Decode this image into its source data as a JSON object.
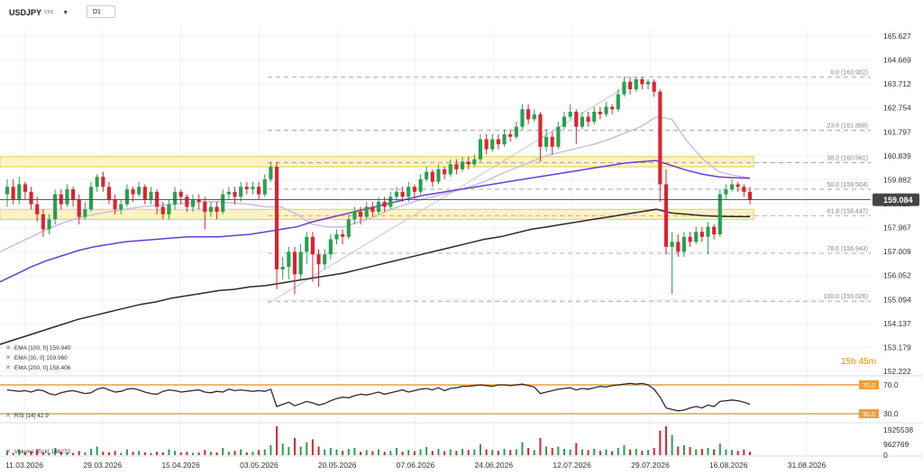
{
  "header": {
    "symbol": "USDJPY",
    "instrument_type": "CFD",
    "timeframe": "D1"
  },
  "countdown": "15h 45m",
  "colors": {
    "up": "#27a050",
    "down": "#e0212e",
    "ema100": "#6a3dd6",
    "ema30": "#c9bfe3",
    "ema200": "#2b2b2b",
    "rsi": "#2b2b2b",
    "level": "#f0a030",
    "zone_fill": "#fdf2bd",
    "zone_border": "#e8c840",
    "fib": "#999999"
  },
  "chart_data": {
    "type": "candlestick",
    "main": {
      "ylim": [
        152.222,
        165.627
      ],
      "y_ticks": [
        "165.627",
        "164.669",
        "163.712",
        "162.754",
        "161.797",
        "160.839",
        "159.882",
        "158.925",
        "157.967",
        "157.009",
        "156.052",
        "155.094",
        "154.137",
        "153.179",
        "152.222"
      ],
      "last_price": "159.084",
      "x_ticks": [
        "11.03.2026",
        "29.03.2026",
        "15.04.2026",
        "03.05.2026",
        "20.05.2026",
        "07.06.2026",
        "24.06.2026",
        "12.07.2026",
        "29.07.2026",
        "16.08.2026",
        "31.08.2026"
      ],
      "fibonacci": [
        {
          "label": "0.0 (163.982)",
          "value": 163.982
        },
        {
          "label": "23.6 (161.868)",
          "value": 161.868
        },
        {
          "label": "38.2 (160.561)",
          "value": 160.561
        },
        {
          "label": "50.0 (159.504)",
          "value": 159.504
        },
        {
          "label": "61.8 (158.447)",
          "value": 158.447
        },
        {
          "label": "78.6 (156.943)",
          "value": 156.943
        },
        {
          "label": "100.0 (155.026)",
          "value": 155.026
        }
      ],
      "zones": [
        {
          "from": 160.4,
          "to": 160.8
        },
        {
          "from": 158.3,
          "to": 158.7
        }
      ],
      "indicators": [
        {
          "name": "EMA [100, 0]",
          "value": "159.940"
        },
        {
          "name": "EMA [30, 0]",
          "value": "159.960"
        },
        {
          "name": "EMA [200, 0]",
          "value": "158.406"
        }
      ],
      "candles": [
        [
          159.3,
          159.6,
          159.9,
          158.8
        ],
        [
          159.6,
          159.1,
          159.9,
          158.9
        ],
        [
          159.1,
          159.7,
          160.0,
          158.9
        ],
        [
          159.7,
          159.4,
          159.8,
          159.1
        ],
        [
          159.4,
          158.9,
          159.6,
          158.7
        ],
        [
          158.9,
          158.5,
          159.2,
          158.2
        ],
        [
          158.5,
          157.9,
          158.7,
          157.6
        ],
        [
          157.9,
          158.3,
          158.5,
          157.7
        ],
        [
          158.3,
          159.3,
          159.5,
          158.1
        ],
        [
          159.3,
          158.9,
          159.5,
          158.7
        ],
        [
          158.9,
          159.5,
          159.7,
          158.8
        ],
        [
          159.5,
          159.1,
          159.6,
          158.8
        ],
        [
          159.1,
          158.4,
          159.3,
          158.1
        ],
        [
          158.4,
          158.7,
          159.0,
          158.3
        ],
        [
          158.7,
          159.6,
          159.8,
          158.6
        ],
        [
          159.6,
          160.0,
          160.1,
          159.4
        ],
        [
          160.0,
          159.6,
          160.2,
          159.4
        ],
        [
          159.6,
          159.1,
          159.8,
          158.9
        ],
        [
          159.1,
          158.7,
          159.3,
          158.5
        ],
        [
          158.7,
          158.9,
          159.1,
          158.5
        ],
        [
          158.9,
          159.5,
          159.7,
          158.8
        ],
        [
          159.5,
          159.3,
          159.6,
          159.0
        ],
        [
          159.3,
          159.6,
          159.8,
          159.2
        ],
        [
          159.6,
          159.1,
          159.7,
          158.9
        ],
        [
          159.1,
          159.4,
          159.6,
          158.9
        ],
        [
          159.4,
          158.8,
          159.5,
          158.5
        ],
        [
          158.8,
          158.5,
          159.0,
          158.3
        ],
        [
          158.5,
          158.9,
          159.1,
          158.3
        ],
        [
          158.9,
          159.4,
          159.6,
          158.7
        ],
        [
          159.4,
          159.2,
          159.5,
          158.9
        ],
        [
          159.2,
          158.8,
          159.3,
          158.6
        ],
        [
          158.8,
          159.1,
          159.3,
          158.6
        ],
        [
          159.1,
          159.0,
          159.3,
          158.7
        ],
        [
          159.0,
          158.6,
          159.2,
          157.9
        ],
        [
          158.6,
          158.8,
          159.0,
          158.4
        ],
        [
          158.8,
          158.6,
          159.0,
          158.3
        ],
        [
          158.6,
          159.3,
          159.5,
          158.5
        ],
        [
          159.3,
          159.4,
          159.6,
          159.1
        ],
        [
          159.4,
          159.2,
          159.6,
          158.9
        ],
        [
          159.2,
          159.6,
          159.8,
          159.0
        ],
        [
          159.6,
          159.5,
          159.8,
          159.3
        ],
        [
          159.5,
          159.6,
          159.8,
          159.3
        ],
        [
          159.6,
          159.3,
          159.8,
          159.1
        ],
        [
          159.3,
          159.9,
          160.1,
          159.2
        ],
        [
          159.9,
          160.4,
          160.6,
          159.8
        ],
        [
          160.4,
          156.3,
          160.6,
          155.5
        ],
        [
          156.3,
          156.4,
          156.8,
          155.9
        ],
        [
          156.4,
          157.0,
          157.2,
          155.9
        ],
        [
          157.0,
          156.1,
          157.2,
          155.3
        ],
        [
          156.1,
          157.0,
          157.3,
          155.9
        ],
        [
          157.0,
          157.6,
          157.8,
          156.5
        ],
        [
          157.6,
          156.9,
          157.8,
          155.8
        ],
        [
          156.9,
          156.5,
          157.1,
          155.6
        ],
        [
          156.5,
          156.9,
          157.1,
          156.3
        ],
        [
          156.9,
          157.5,
          157.7,
          156.7
        ],
        [
          157.5,
          157.7,
          157.9,
          157.3
        ],
        [
          157.7,
          157.6,
          157.9,
          157.3
        ],
        [
          157.6,
          158.3,
          158.5,
          157.5
        ],
        [
          158.3,
          158.6,
          158.8,
          158.1
        ],
        [
          158.6,
          158.4,
          158.8,
          158.1
        ],
        [
          158.4,
          158.8,
          159.0,
          158.3
        ],
        [
          158.8,
          158.6,
          159.0,
          158.4
        ],
        [
          158.6,
          159.0,
          159.2,
          158.5
        ],
        [
          159.0,
          158.8,
          159.2,
          158.6
        ],
        [
          158.8,
          159.2,
          159.4,
          158.7
        ],
        [
          159.2,
          159.4,
          159.6,
          159.0
        ],
        [
          159.4,
          159.2,
          159.6,
          159.0
        ],
        [
          159.2,
          159.6,
          159.8,
          159.0
        ],
        [
          159.6,
          159.4,
          159.7,
          159.1
        ],
        [
          159.4,
          159.9,
          160.1,
          159.3
        ],
        [
          159.9,
          160.2,
          160.4,
          159.8
        ],
        [
          160.2,
          159.8,
          160.3,
          159.6
        ],
        [
          159.8,
          160.3,
          160.5,
          159.7
        ],
        [
          160.3,
          160.1,
          160.4,
          159.9
        ],
        [
          160.1,
          160.5,
          160.7,
          160.0
        ],
        [
          160.5,
          160.3,
          160.7,
          160.1
        ],
        [
          160.3,
          160.6,
          160.8,
          160.2
        ],
        [
          160.6,
          160.5,
          160.8,
          160.3
        ],
        [
          160.5,
          160.7,
          160.9,
          160.4
        ],
        [
          160.7,
          161.5,
          161.7,
          160.6
        ],
        [
          161.5,
          161.1,
          161.7,
          160.9
        ],
        [
          161.1,
          161.5,
          161.7,
          161.0
        ],
        [
          161.5,
          161.3,
          161.7,
          161.1
        ],
        [
          161.3,
          161.7,
          161.9,
          161.2
        ],
        [
          161.7,
          161.6,
          161.9,
          161.4
        ],
        [
          161.6,
          162.0,
          162.2,
          161.5
        ],
        [
          162.0,
          162.7,
          162.9,
          161.9
        ],
        [
          162.7,
          162.3,
          162.9,
          162.1
        ],
        [
          162.3,
          162.5,
          162.7,
          162.2
        ],
        [
          162.5,
          161.2,
          162.6,
          160.6
        ],
        [
          161.2,
          161.6,
          161.9,
          161.0
        ],
        [
          161.6,
          161.2,
          161.8,
          160.9
        ],
        [
          161.2,
          162.0,
          162.2,
          161.1
        ],
        [
          162.0,
          162.4,
          162.6,
          161.9
        ],
        [
          162.4,
          162.6,
          162.9,
          162.3
        ],
        [
          162.6,
          162.0,
          162.7,
          161.3
        ],
        [
          162.0,
          162.4,
          162.6,
          161.9
        ],
        [
          162.4,
          162.2,
          162.6,
          162.0
        ],
        [
          162.2,
          162.6,
          162.8,
          162.1
        ],
        [
          162.6,
          162.5,
          162.8,
          162.3
        ],
        [
          162.5,
          162.8,
          163.0,
          162.4
        ],
        [
          162.8,
          162.7,
          162.9,
          162.5
        ],
        [
          162.7,
          163.3,
          163.5,
          162.6
        ],
        [
          163.3,
          163.8,
          164.0,
          163.2
        ],
        [
          163.8,
          163.5,
          164.0,
          163.3
        ],
        [
          163.5,
          163.9,
          164.0,
          163.4
        ],
        [
          163.9,
          163.7,
          164.0,
          163.5
        ],
        [
          163.7,
          163.8,
          163.9,
          163.5
        ],
        [
          163.8,
          163.4,
          163.9,
          163.2
        ],
        [
          163.4,
          159.7,
          163.5,
          159.0
        ],
        [
          159.7,
          157.2,
          160.3,
          156.9
        ],
        [
          157.2,
          157.4,
          157.8,
          155.3
        ],
        [
          157.4,
          157.0,
          157.7,
          156.8
        ],
        [
          157.0,
          157.6,
          157.8,
          156.8
        ],
        [
          157.6,
          157.4,
          157.8,
          157.2
        ],
        [
          157.4,
          157.8,
          158.0,
          157.3
        ],
        [
          157.8,
          157.6,
          158.0,
          157.4
        ],
        [
          157.6,
          158.0,
          158.2,
          156.9
        ],
        [
          158.0,
          157.7,
          158.1,
          157.5
        ],
        [
          157.7,
          159.3,
          159.5,
          157.6
        ],
        [
          159.3,
          159.5,
          159.7,
          159.1
        ],
        [
          159.5,
          159.7,
          159.9,
          159.4
        ],
        [
          159.7,
          159.6,
          159.8,
          159.4
        ],
        [
          159.6,
          159.4,
          159.7,
          159.2
        ],
        [
          159.4,
          159.08,
          159.6,
          158.9
        ]
      ],
      "ema30": [
        157.0,
        157.3,
        157.6,
        157.9,
        158.15,
        158.35,
        158.5,
        158.6,
        158.7,
        158.8,
        158.85,
        158.9,
        158.95,
        159.0,
        159.0,
        158.95,
        158.9,
        158.8,
        158.8,
        158.5,
        158.1,
        158.0,
        158.0,
        158.2,
        158.4,
        158.7,
        158.9,
        159.1,
        159.25,
        159.4,
        159.6,
        159.8,
        160.1,
        160.35,
        160.6,
        160.85,
        161.0,
        161.15,
        161.3,
        161.5,
        161.75,
        162.0,
        162.4,
        162.3,
        161.4,
        160.7,
        160.2,
        160.05,
        159.96
      ],
      "ema100": [
        155.8,
        156.1,
        156.4,
        156.65,
        156.85,
        157.05,
        157.2,
        157.3,
        157.4,
        157.45,
        157.5,
        157.55,
        157.6,
        157.6,
        157.6,
        157.65,
        157.7,
        157.8,
        157.9,
        158.0,
        158.2,
        158.35,
        158.5,
        158.65,
        158.8,
        158.95,
        159.1,
        159.25,
        159.35,
        159.45,
        159.55,
        159.65,
        159.75,
        159.85,
        159.95,
        160.05,
        160.15,
        160.25,
        160.35,
        160.45,
        160.55,
        160.6,
        160.65,
        160.45,
        160.25,
        160.1,
        160.0,
        159.96,
        159.94
      ],
      "ema200": [
        153.3,
        153.5,
        153.7,
        153.9,
        154.1,
        154.3,
        154.45,
        154.6,
        154.75,
        154.9,
        155.0,
        155.15,
        155.25,
        155.35,
        155.45,
        155.5,
        155.6,
        155.65,
        155.75,
        155.85,
        155.95,
        156.05,
        156.15,
        156.3,
        156.45,
        156.6,
        156.75,
        156.9,
        157.05,
        157.2,
        157.35,
        157.5,
        157.6,
        157.75,
        157.9,
        158.0,
        158.1,
        158.2,
        158.3,
        158.4,
        158.5,
        158.6,
        158.7,
        158.55,
        158.5,
        158.45,
        158.42,
        158.41,
        158.406
      ],
      "diag_line": [
        [
          297,
          337
        ],
        [
          708,
          88
        ]
      ]
    },
    "rsi": {
      "label": "RSI [14] 42.9",
      "value": 42.9,
      "levels": [
        "70.0",
        "30.0"
      ],
      "ylim": [
        20,
        80
      ],
      "values": [
        63,
        62,
        61,
        62,
        60,
        63,
        62,
        58,
        56,
        59,
        61,
        62,
        60,
        58,
        59,
        64,
        66,
        63,
        60,
        61,
        64,
        65,
        63,
        60,
        58,
        57,
        61,
        63,
        62,
        60,
        61,
        62,
        63,
        60,
        59,
        61,
        60,
        64,
        62,
        63,
        62,
        61,
        62,
        61,
        64,
        40,
        43,
        46,
        41,
        44,
        47,
        45,
        42,
        44,
        48,
        51,
        53,
        52,
        55,
        57,
        56,
        58,
        60,
        57,
        59,
        61,
        63,
        60,
        62,
        64,
        65,
        63,
        66,
        62,
        65,
        66,
        68,
        68,
        69,
        70,
        69,
        68,
        70,
        70,
        69,
        70,
        71,
        69,
        67,
        58,
        60,
        62,
        64,
        65,
        66,
        63,
        65,
        64,
        66,
        68,
        67,
        69,
        70,
        71,
        72,
        71,
        72,
        70,
        64,
        53,
        38,
        36,
        34,
        35,
        38,
        40,
        38,
        42,
        40,
        47,
        48,
        49,
        48,
        46,
        43
      ]
    },
    "volume": {
      "label": "Volume [Tick] 146272",
      "y_ticks": [
        "1925538",
        "962769",
        "0"
      ],
      "values": [
        0.15,
        0.08,
        0.2,
        0.1,
        0.12,
        0.18,
        0.1,
        0.08,
        0.25,
        0.12,
        0.1,
        0.08,
        0.14,
        0.1,
        0.22,
        0.3,
        0.12,
        0.1,
        0.15,
        0.08,
        0.2,
        0.12,
        0.15,
        0.1,
        0.08,
        0.12,
        0.1,
        0.2,
        0.15,
        0.1,
        0.12,
        0.08,
        0.1,
        0.18,
        0.12,
        0.1,
        0.25,
        0.12,
        0.15,
        0.2,
        0.1,
        0.12,
        0.18,
        0.2,
        0.35,
        1.0,
        0.4,
        0.28,
        0.6,
        0.3,
        0.45,
        0.55,
        0.3,
        0.2,
        0.25,
        0.2,
        0.15,
        0.22,
        0.25,
        0.12,
        0.18,
        0.14,
        0.2,
        0.12,
        0.15,
        0.25,
        0.12,
        0.18,
        0.14,
        0.2,
        0.28,
        0.15,
        0.22,
        0.14,
        0.2,
        0.15,
        0.22,
        0.18,
        0.2,
        0.38,
        0.2,
        0.18,
        0.15,
        0.22,
        0.18,
        0.2,
        0.45,
        0.25,
        0.18,
        0.6,
        0.3,
        0.25,
        0.3,
        0.22,
        0.2,
        0.42,
        0.2,
        0.18,
        0.22,
        0.15,
        0.2,
        0.14,
        0.25,
        0.35,
        0.2,
        0.22,
        0.15,
        0.18,
        0.25,
        0.85,
        1.0,
        0.7,
        0.3,
        0.35,
        0.28,
        0.2,
        0.22,
        0.25,
        0.2,
        0.4,
        0.2,
        0.18,
        0.15,
        0.2,
        0.12
      ]
    }
  }
}
